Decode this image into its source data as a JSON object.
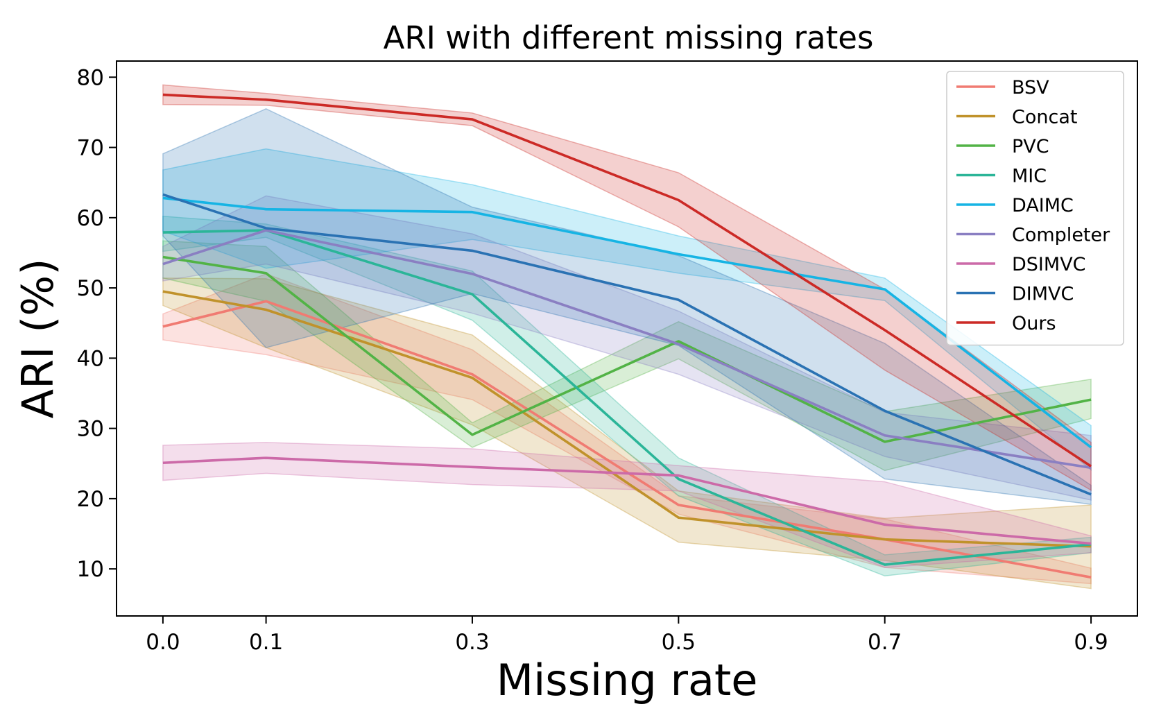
{
  "chart_data": {
    "type": "line",
    "title": "ARI with different missing rates",
    "xlabel": "Missing rate",
    "ylabel": "ARI (%)",
    "x": [
      0.0,
      0.1,
      0.3,
      0.5,
      0.7,
      0.9
    ],
    "x_tick_labels": [
      "0.0",
      "0.1",
      "0.3",
      "0.5",
      "0.7",
      "0.9"
    ],
    "y_ticks": [
      10,
      20,
      30,
      40,
      50,
      60,
      70,
      80
    ],
    "xlim": [
      -0.045,
      0.945
    ],
    "ylim": [
      3.3,
      82.3
    ],
    "grid": false,
    "legend_position": "top-right",
    "shaded_band": "variance range",
    "series": [
      {
        "name": "BSV",
        "color": "#f07b72",
        "values": [
          44.5,
          48.1,
          37.7,
          19.1,
          14.2,
          8.8
        ],
        "lower": [
          42.6,
          40.5,
          34.1,
          17.8,
          10.2,
          7.9
        ],
        "upper": [
          46.3,
          52.0,
          41.2,
          20.4,
          17.1,
          10.1
        ]
      },
      {
        "name": "Concat",
        "color": "#c0922b",
        "values": [
          49.5,
          46.9,
          37.2,
          17.3,
          14.2,
          13.2
        ],
        "lower": [
          47.5,
          41.5,
          30.5,
          13.8,
          11.2,
          7.2
        ],
        "upper": [
          51.4,
          51.3,
          43.3,
          21.1,
          17.2,
          19.1
        ]
      },
      {
        "name": "PVC",
        "color": "#52b346",
        "values": [
          54.4,
          52.1,
          29.1,
          42.4,
          28.1,
          34.1
        ],
        "lower": [
          51.4,
          48.1,
          27.3,
          39.9,
          24.0,
          31.4
        ],
        "upper": [
          56.7,
          55.9,
          30.8,
          45.2,
          32.4,
          37.0
        ]
      },
      {
        "name": "MIC",
        "color": "#2bb598",
        "values": [
          57.9,
          58.2,
          49.1,
          22.8,
          10.6,
          13.5
        ],
        "lower": [
          55.2,
          57.2,
          45.4,
          20.4,
          9.0,
          12.3
        ],
        "upper": [
          60.2,
          59.1,
          52.4,
          25.8,
          12.0,
          14.5
        ]
      },
      {
        "name": "DAIMC",
        "color": "#16b4e4",
        "values": [
          62.8,
          61.2,
          60.8,
          54.8,
          49.8,
          27.3
        ],
        "lower": [
          58.1,
          52.8,
          56.9,
          52.1,
          48.2,
          24.1
        ],
        "upper": [
          66.8,
          69.8,
          64.7,
          57.4,
          51.4,
          30.4
        ]
      },
      {
        "name": "Completer",
        "color": "#8a7fc2",
        "values": [
          53.4,
          58.2,
          52.0,
          42.0,
          29.0,
          24.4
        ],
        "lower": [
          51.0,
          53.4,
          46.4,
          37.7,
          26.0,
          19.8
        ],
        "upper": [
          55.9,
          63.1,
          57.7,
          46.7,
          32.3,
          29.0
        ]
      },
      {
        "name": "DSIMVC",
        "color": "#cc6aa8",
        "values": [
          25.1,
          25.8,
          24.5,
          23.3,
          16.3,
          13.6
        ],
        "lower": [
          22.6,
          23.6,
          22.0,
          21.1,
          10.2,
          12.3
        ],
        "upper": [
          27.6,
          28.0,
          27.1,
          24.7,
          22.4,
          14.7
        ]
      },
      {
        "name": "DIMVC",
        "color": "#2a72b3",
        "values": [
          63.3,
          58.5,
          55.3,
          48.3,
          32.5,
          20.6
        ],
        "lower": [
          57.4,
          41.5,
          49.2,
          41.8,
          22.8,
          19.2
        ],
        "upper": [
          69.1,
          75.5,
          61.5,
          54.6,
          42.1,
          21.9
        ]
      },
      {
        "name": "Ours",
        "color": "#cc2a26",
        "values": [
          77.5,
          76.8,
          74.0,
          62.5,
          44.0,
          24.6
        ],
        "lower": [
          76.1,
          76.0,
          73.1,
          58.7,
          38.3,
          21.2
        ],
        "upper": [
          78.9,
          77.7,
          74.9,
          66.4,
          49.8,
          28.0
        ]
      }
    ]
  }
}
